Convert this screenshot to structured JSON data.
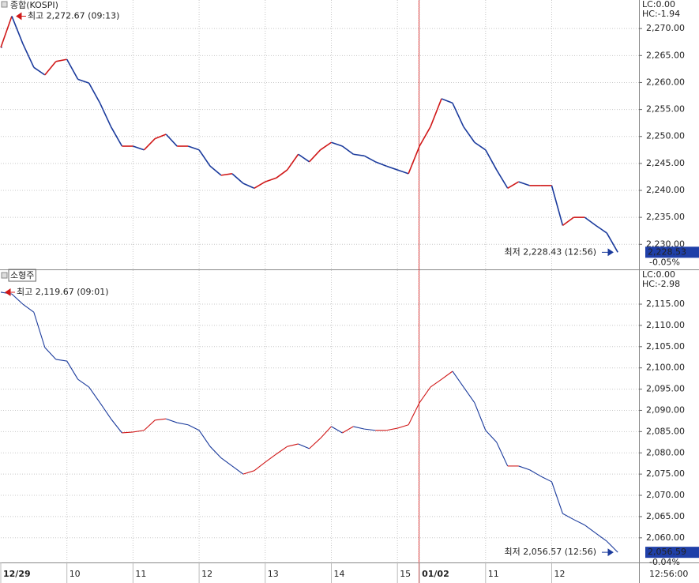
{
  "chart_data": [
    {
      "type": "line",
      "title": "종합(KOSPI)",
      "up_color": "#d01818",
      "down_color": "#1a3a9c",
      "values": [
        2266.5,
        2272.3,
        2267.2,
        2262.8,
        2261.4,
        2263.9,
        2264.3,
        2260.6,
        2259.9,
        2256.2,
        2251.8,
        2248.2,
        2248.2,
        2247.5,
        2249.6,
        2250.4,
        2248.2,
        2248.2,
        2247.5,
        2244.5,
        2242.8,
        2243.1,
        2241.3,
        2240.4,
        2241.6,
        2242.3,
        2243.8,
        2246.7,
        2245.3,
        2247.5,
        2248.9,
        2248.2,
        2246.7,
        2246.4,
        2245.3,
        2244.5,
        2243.8,
        2243.1,
        2248.2,
        2251.8,
        2257.0,
        2256.2,
        2251.8,
        2248.9,
        2247.5,
        2243.8,
        2240.4,
        2241.6,
        2240.9,
        2240.9,
        2240.9,
        2233.5,
        2235.0,
        2235.0,
        2233.5,
        2232.1,
        2228.53
      ],
      "ylim": [
        2225.5,
        2275.3
      ],
      "yticks": [
        {
          "value": 2230,
          "label": "2,230.00"
        },
        {
          "value": 2235,
          "label": "2,235.00"
        },
        {
          "value": 2240,
          "label": "2,240.00"
        },
        {
          "value": 2245,
          "label": "2,245.00"
        },
        {
          "value": 2250,
          "label": "2,250.00"
        },
        {
          "value": 2255,
          "label": "2,255.00"
        },
        {
          "value": 2260,
          "label": "2,260.00"
        },
        {
          "value": 2265,
          "label": "2,265.00"
        },
        {
          "value": 2270,
          "label": "2,270.00"
        }
      ],
      "high_label": "최고 2,272.67 (09:13)",
      "low_label": "최저 2,228.43 (12:56)",
      "lc_label": "LC:0.00",
      "hc_label": "HC:-1.94",
      "last_label": "2,228.53",
      "change_label": "-0.05%",
      "grid": true
    },
    {
      "type": "line",
      "title": "소형주",
      "up_color": "#d01818",
      "down_color": "#1a3a9c",
      "categories": [
        "12/29",
        null,
        null,
        null,
        null,
        null,
        "10",
        null,
        null,
        null,
        null,
        null,
        "11",
        null,
        null,
        null,
        null,
        null,
        "12",
        null,
        null,
        null,
        null,
        null,
        "13",
        null,
        null,
        null,
        null,
        null,
        "14",
        null,
        null,
        null,
        null,
        null,
        "15",
        null,
        "01/02",
        null,
        null,
        null,
        null,
        null,
        "11",
        null,
        null,
        null,
        null,
        null,
        "12",
        null,
        null,
        null,
        null,
        null,
        null
      ],
      "values": [
        2117.8,
        2117.4,
        2115.0,
        2113.1,
        2104.8,
        2102.0,
        2101.6,
        2097.3,
        2095.5,
        2091.8,
        2088.0,
        2084.7,
        2084.9,
        2085.3,
        2087.7,
        2088.0,
        2087.1,
        2086.6,
        2085.3,
        2081.5,
        2078.8,
        2076.9,
        2075.0,
        2075.8,
        2077.8,
        2079.7,
        2081.5,
        2082.1,
        2081.0,
        2083.4,
        2086.2,
        2084.7,
        2086.2,
        2085.6,
        2085.3,
        2085.3,
        2085.8,
        2086.6,
        2091.8,
        2095.5,
        2097.3,
        2099.2,
        2095.5,
        2091.8,
        2085.3,
        2082.5,
        2076.9,
        2076.9,
        2076.0,
        2074.5,
        2073.2,
        2065.7,
        2064.3,
        2063.0,
        2061.1,
        2059.2,
        2056.59
      ],
      "ylim": [
        2054.2,
        2123.0
      ],
      "yticks": [
        {
          "value": 2060,
          "label": "2,060.00"
        },
        {
          "value": 2065,
          "label": "2,065.00"
        },
        {
          "value": 2070,
          "label": "2,070.00"
        },
        {
          "value": 2075,
          "label": "2,075.00"
        },
        {
          "value": 2080,
          "label": "2,080.00"
        },
        {
          "value": 2085,
          "label": "2,085.00"
        },
        {
          "value": 2090,
          "label": "2,090.00"
        },
        {
          "value": 2095,
          "label": "2,095.00"
        },
        {
          "value": 2100,
          "label": "2,100.00"
        },
        {
          "value": 2105,
          "label": "2,105.00"
        },
        {
          "value": 2110,
          "label": "2,110.00"
        },
        {
          "value": 2115,
          "label": "2,115.00"
        }
      ],
      "high_label": "최고 2,119.67 (09:01)",
      "low_label": "최저 2,056.57 (12:56)",
      "lc_label": "LC:0.00",
      "hc_label": "HC:-2.98",
      "last_label": "2,056.59",
      "change_label": "-0.04%",
      "grid": true
    }
  ],
  "time_label": "12:56:00"
}
